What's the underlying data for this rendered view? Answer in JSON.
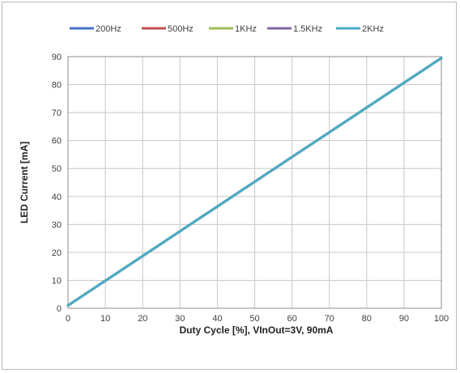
{
  "chart_data": {
    "type": "line",
    "title": "",
    "xlabel": "Duty Cycle [%], VInOut=3V, 90mA",
    "ylabel": "LED Current [mA]",
    "xlim": [
      0,
      100
    ],
    "ylim": [
      0,
      90
    ],
    "xticks": [
      0,
      10,
      20,
      30,
      40,
      50,
      60,
      70,
      80,
      90,
      100
    ],
    "yticks": [
      0,
      10,
      20,
      30,
      40,
      50,
      60,
      70,
      80,
      90
    ],
    "grid": true,
    "legend": "top",
    "series": [
      {
        "name": "200Hz",
        "color": "#4472c4",
        "x": [
          0,
          100
        ],
        "y": [
          1,
          89.5
        ]
      },
      {
        "name": "500Hz",
        "color": "#c0504d",
        "x": [
          0,
          100
        ],
        "y": [
          1,
          89.5
        ]
      },
      {
        "name": "1KHz",
        "color": "#9bbb59",
        "x": [
          0,
          100
        ],
        "y": [
          1,
          89.5
        ]
      },
      {
        "name": "1.5KHz",
        "color": "#8064a2",
        "x": [
          0,
          100
        ],
        "y": [
          1,
          89.5
        ]
      },
      {
        "name": "2KHz",
        "color": "#4bacc6",
        "x": [
          0,
          100
        ],
        "y": [
          1,
          89.5
        ]
      }
    ]
  }
}
